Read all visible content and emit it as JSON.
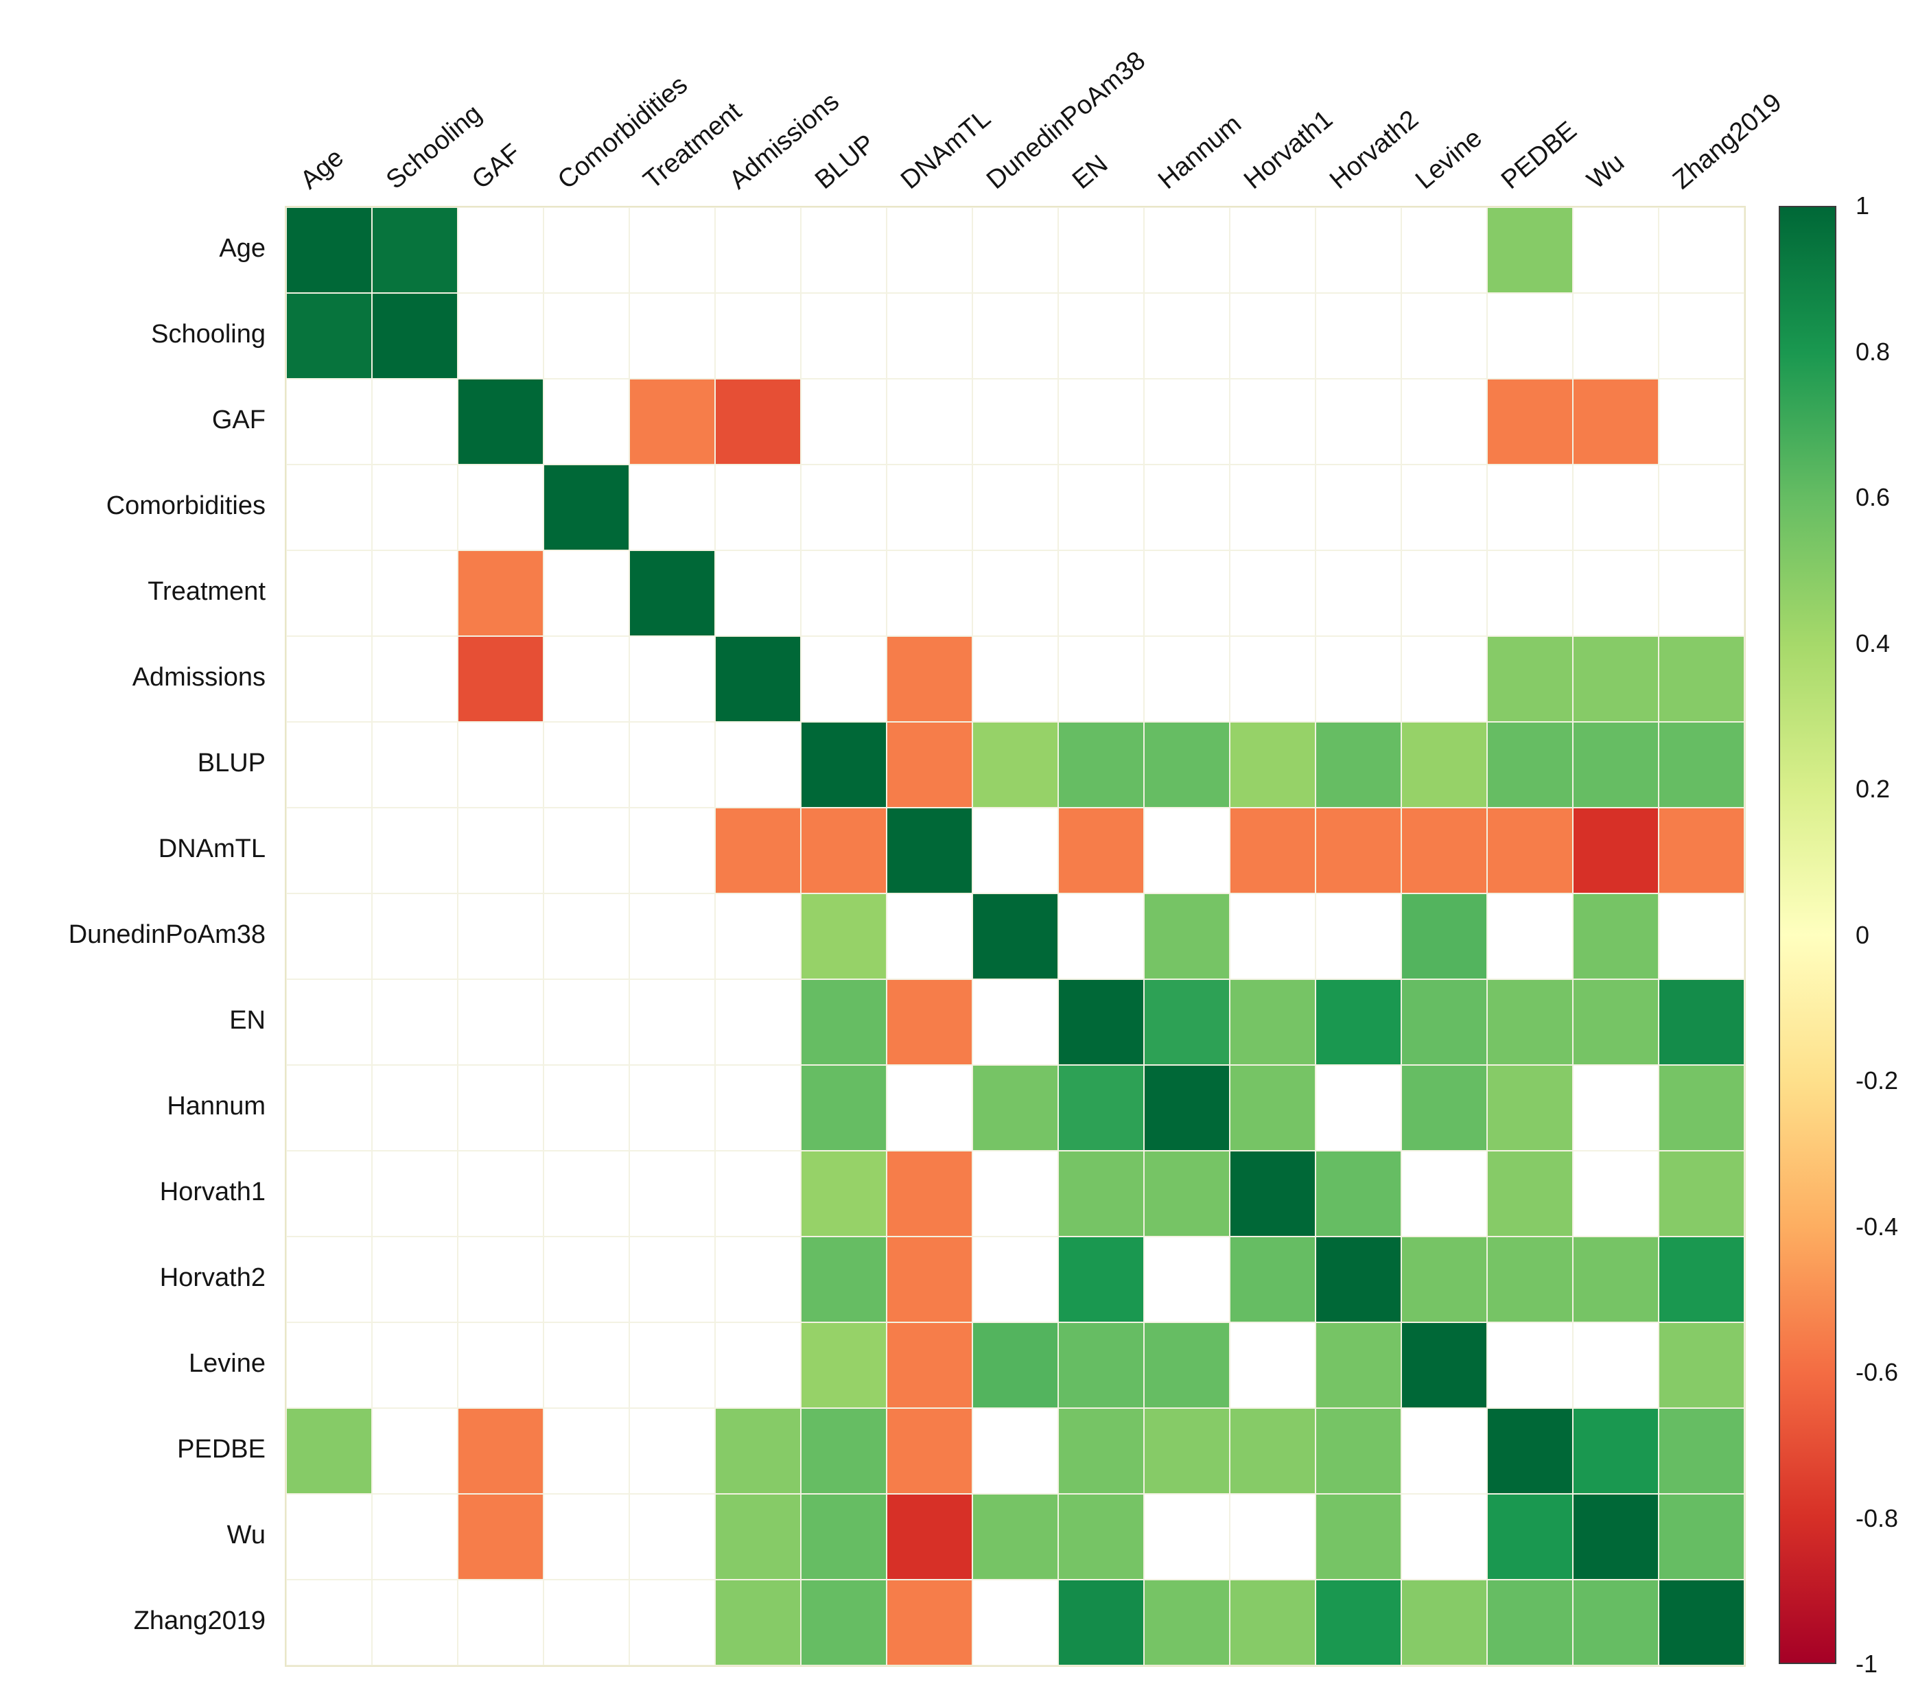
{
  "figure": {
    "kind": "correlation-matrix-heatmap"
  },
  "chart_data": {
    "type": "heatmap",
    "title": "",
    "xlabel": "",
    "ylabel": "",
    "legend_position": "right",
    "grid": true,
    "variables": [
      "Age",
      "Schooling",
      "GAF",
      "Comorbidities",
      "Treatment",
      "Admissions",
      "BLUP",
      "DNAmTL",
      "DunedinPoAm38",
      "EN",
      "Hannum",
      "Horvath1",
      "Horvath2",
      "Levine",
      "PEDBE",
      "Wu",
      "Zhang2019"
    ],
    "matrix": [
      [
        1,
        0.95,
        null,
        null,
        null,
        null,
        null,
        null,
        null,
        null,
        null,
        null,
        null,
        null,
        0.5,
        null,
        null
      ],
      [
        0.95,
        1,
        null,
        null,
        null,
        null,
        null,
        null,
        null,
        null,
        null,
        null,
        null,
        null,
        null,
        null,
        null
      ],
      [
        null,
        null,
        1,
        null,
        -0.55,
        -0.7,
        null,
        null,
        null,
        null,
        null,
        null,
        null,
        null,
        -0.55,
        -0.55,
        null
      ],
      [
        null,
        null,
        null,
        1,
        null,
        null,
        null,
        null,
        null,
        null,
        null,
        null,
        null,
        null,
        null,
        null,
        null
      ],
      [
        null,
        null,
        -0.55,
        null,
        1,
        null,
        null,
        null,
        null,
        null,
        null,
        null,
        null,
        null,
        null,
        null,
        null
      ],
      [
        null,
        null,
        -0.7,
        null,
        null,
        1,
        null,
        -0.55,
        null,
        null,
        null,
        null,
        null,
        null,
        0.5,
        0.5,
        0.5
      ],
      [
        null,
        null,
        null,
        null,
        null,
        null,
        1,
        -0.55,
        0.45,
        0.6,
        0.6,
        0.45,
        0.6,
        0.45,
        0.6,
        0.6,
        0.6
      ],
      [
        null,
        null,
        null,
        null,
        null,
        -0.55,
        -0.55,
        1,
        null,
        -0.55,
        null,
        -0.55,
        -0.55,
        -0.55,
        -0.55,
        -0.8,
        -0.55
      ],
      [
        null,
        null,
        null,
        null,
        null,
        null,
        0.45,
        null,
        1,
        null,
        0.55,
        null,
        null,
        0.65,
        null,
        0.55,
        null
      ],
      [
        null,
        null,
        null,
        null,
        null,
        null,
        0.6,
        -0.55,
        null,
        1,
        0.75,
        0.55,
        0.8,
        0.6,
        0.55,
        0.55,
        0.85
      ],
      [
        null,
        null,
        null,
        null,
        null,
        null,
        0.6,
        null,
        0.55,
        0.75,
        1,
        0.55,
        null,
        0.6,
        0.5,
        null,
        0.55
      ],
      [
        null,
        null,
        null,
        null,
        null,
        null,
        0.45,
        -0.55,
        null,
        0.55,
        0.55,
        1,
        0.6,
        null,
        0.5,
        null,
        0.5
      ],
      [
        null,
        null,
        null,
        null,
        null,
        null,
        0.6,
        -0.55,
        null,
        0.8,
        null,
        0.6,
        1,
        0.55,
        0.55,
        0.55,
        0.8
      ],
      [
        null,
        null,
        null,
        null,
        null,
        null,
        0.45,
        -0.55,
        0.65,
        0.6,
        0.6,
        null,
        0.55,
        1,
        null,
        null,
        0.5
      ],
      [
        0.5,
        null,
        -0.55,
        null,
        null,
        0.5,
        0.6,
        -0.55,
        null,
        0.55,
        0.5,
        0.5,
        0.55,
        null,
        1,
        0.8,
        0.6
      ],
      [
        null,
        null,
        -0.55,
        null,
        null,
        0.5,
        0.6,
        -0.8,
        0.55,
        0.55,
        null,
        null,
        0.55,
        null,
        0.8,
        1,
        0.6
      ],
      [
        null,
        null,
        null,
        null,
        null,
        0.5,
        0.6,
        -0.55,
        null,
        0.85,
        0.55,
        0.5,
        0.8,
        0.5,
        0.6,
        0.6,
        1
      ]
    ],
    "empty_cell_color": "#ffffff",
    "colorbar": {
      "min": -1,
      "max": 1,
      "tick_values": [
        1,
        0.8,
        0.6,
        0.4,
        0.2,
        0,
        -0.2,
        -0.4,
        -0.6,
        -0.8,
        -1
      ],
      "tick_labels": [
        "1",
        "0.8",
        "0.6",
        "0.4",
        "0.2",
        "0",
        "-0.2",
        "-0.4",
        "-0.6",
        "-0.8",
        "-1"
      ]
    },
    "colormap": [
      [
        -1.0,
        "#a50026"
      ],
      [
        -0.8,
        "#d73027"
      ],
      [
        -0.6,
        "#f46d43"
      ],
      [
        -0.4,
        "#fdae61"
      ],
      [
        -0.2,
        "#fee08b"
      ],
      [
        0.0,
        "#ffffbf"
      ],
      [
        0.2,
        "#d9ef8b"
      ],
      [
        0.4,
        "#a6d96a"
      ],
      [
        0.6,
        "#66bd63"
      ],
      [
        0.8,
        "#1a9850"
      ],
      [
        1.0,
        "#006837"
      ]
    ]
  }
}
